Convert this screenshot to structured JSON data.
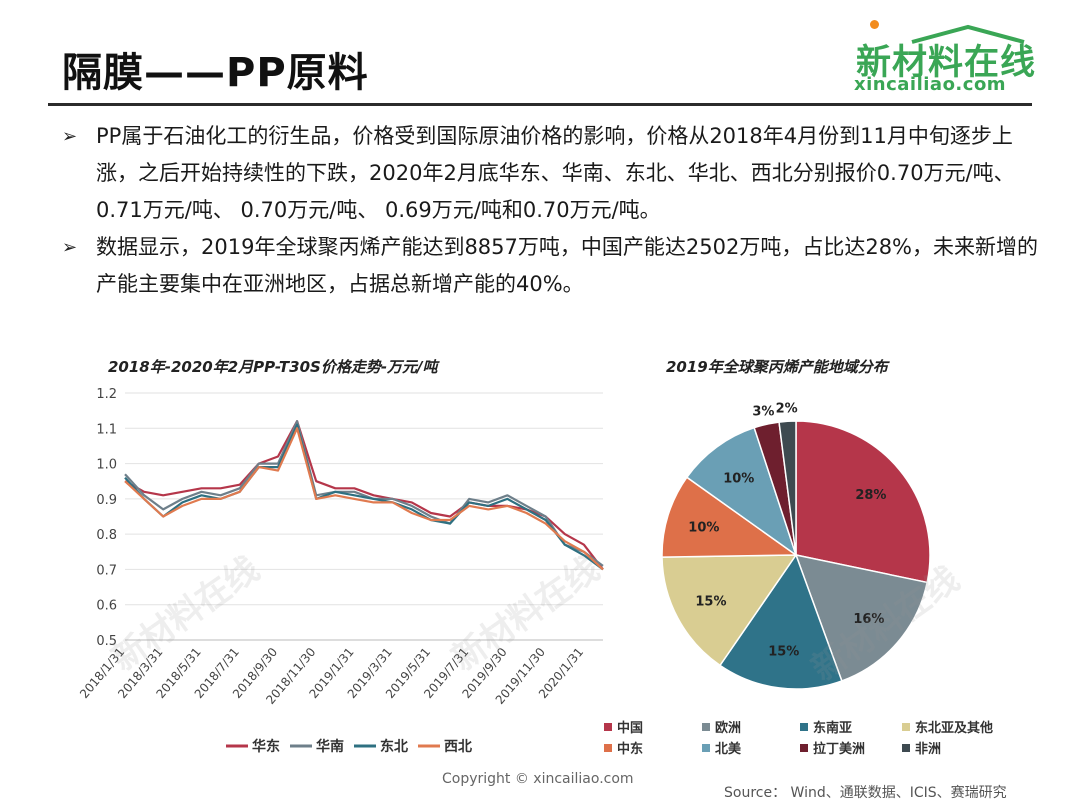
{
  "page": {
    "title": "隔膜——PP原料",
    "logo_text": "新材料在线",
    "logo_url": "xincailiao.com",
    "copyright": "Copyright © xincailiao.com",
    "source": "Source： Wind、通联数据、ICIS、赛瑞研究"
  },
  "bullets": [
    "PP属于石油化工的衍生品，价格受到国际原油价格的影响，价格从2018年4月份到11月中旬逐步上涨，之后开始持续性的下跌，2020年2月底华东、华南、东北、华北、西北分别报价0.70万元/吨、 0.71万元/吨、 0.70万元/吨、 0.69万元/吨和0.70万元/吨。",
    "数据显示，2019年全球聚丙烯产能达到8857万吨，中国产能达2502万吨，占比达28%，未来新增的产能主要集中在亚洲地区，占据总新增产能的40%。"
  ],
  "chart_data": [
    {
      "type": "line",
      "title": "2018年-2020年2月PP-T30S价格走势-万元/吨",
      "ylim": [
        0.5,
        1.2
      ],
      "yticks": [
        "0.5",
        "0.6",
        "0.7",
        "0.8",
        "0.9",
        "1.0",
        "1.1",
        "1.2"
      ],
      "x_tick_labels": [
        "2018/1/31",
        "2018/3/31",
        "2018/5/31",
        "2018/7/31",
        "2018/9/30",
        "2018/11/30",
        "2019/1/31",
        "2019/3/31",
        "2019/5/31",
        "2019/7/31",
        "2019/9/30",
        "2019/11/30",
        "2020/1/31"
      ],
      "x": [
        "2018/1/31",
        "2018/2/28",
        "2018/3/31",
        "2018/4/30",
        "2018/5/31",
        "2018/6/30",
        "2018/7/31",
        "2018/8/31",
        "2018/9/30",
        "2018/10/31",
        "2018/11/30",
        "2018/12/31",
        "2019/1/31",
        "2019/2/28",
        "2019/3/31",
        "2019/4/30",
        "2019/5/31",
        "2019/6/30",
        "2019/7/31",
        "2019/8/31",
        "2019/9/30",
        "2019/10/31",
        "2019/11/30",
        "2019/12/31",
        "2020/1/31",
        "2020/2/29"
      ],
      "grid": true,
      "legend_position": "bottom",
      "series": [
        {
          "name": "华东",
          "color": "#b5364a",
          "values": [
            0.95,
            0.92,
            0.91,
            0.92,
            0.93,
            0.93,
            0.94,
            1.0,
            1.02,
            1.12,
            0.95,
            0.93,
            0.93,
            0.91,
            0.9,
            0.89,
            0.86,
            0.85,
            0.89,
            0.88,
            0.88,
            0.87,
            0.85,
            0.8,
            0.77,
            0.7
          ]
        },
        {
          "name": "华南",
          "color": "#6e7f8a",
          "values": [
            0.97,
            0.91,
            0.87,
            0.9,
            0.92,
            0.91,
            0.93,
            1.0,
            1.0,
            1.12,
            0.91,
            0.92,
            0.92,
            0.9,
            0.9,
            0.88,
            0.85,
            0.83,
            0.9,
            0.89,
            0.91,
            0.88,
            0.85,
            0.77,
            0.75,
            0.71
          ]
        },
        {
          "name": "东北",
          "color": "#2e7081",
          "values": [
            0.96,
            0.9,
            0.85,
            0.89,
            0.91,
            0.9,
            0.92,
            0.99,
            0.99,
            1.11,
            0.9,
            0.92,
            0.91,
            0.9,
            0.89,
            0.87,
            0.84,
            0.83,
            0.89,
            0.88,
            0.9,
            0.87,
            0.84,
            0.77,
            0.74,
            0.7
          ]
        },
        {
          "name": "西北",
          "color": "#e07a4f",
          "values": [
            0.95,
            0.9,
            0.85,
            0.88,
            0.9,
            0.9,
            0.92,
            0.99,
            0.98,
            1.1,
            0.9,
            0.91,
            0.9,
            0.89,
            0.89,
            0.86,
            0.84,
            0.84,
            0.88,
            0.87,
            0.88,
            0.86,
            0.83,
            0.78,
            0.75,
            0.7
          ]
        }
      ]
    },
    {
      "type": "pie",
      "title": "2019年全球聚丙烯产能地域分布",
      "legend_position": "bottom",
      "slices": [
        {
          "name": "中国",
          "value": 28,
          "label": "28%",
          "color": "#b5364a"
        },
        {
          "name": "欧洲",
          "value": 16,
          "label": "16%",
          "color": "#7b8b93"
        },
        {
          "name": "东南亚",
          "value": 15,
          "label": "15%",
          "color": "#2f7389"
        },
        {
          "name": "东北亚及其他",
          "value": 15,
          "label": "15%",
          "color": "#d9cd92"
        },
        {
          "name": "中东",
          "value": 10,
          "label": "10%",
          "color": "#de7049"
        },
        {
          "name": "北美",
          "value": 10,
          "label": "10%",
          "color": "#6a9fb5"
        },
        {
          "name": "拉丁美洲",
          "value": 3,
          "label": "3%",
          "color": "#6e1f2e"
        },
        {
          "name": "非洲",
          "value": 2,
          "label": "2%",
          "color": "#3e4a50"
        }
      ]
    }
  ]
}
